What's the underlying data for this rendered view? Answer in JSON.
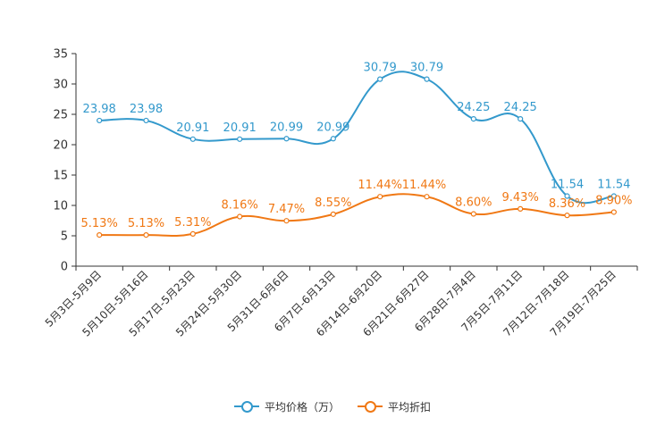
{
  "chart_data": {
    "type": "line",
    "title": "",
    "xlabel": "",
    "ylabel": "",
    "ylim": [
      0,
      35
    ],
    "yticks": [
      0,
      5,
      10,
      15,
      20,
      25,
      30,
      35
    ],
    "grid": false,
    "legend_position": "bottom-center",
    "categories": [
      "5月3日-5月9日",
      "5月10日-5月16日",
      "5月17日-5月23日",
      "5月24日-5月30日",
      "5月31日-6月6日",
      "6月7日-6月13日",
      "6月14日-6月20日",
      "6月21日-6月27日",
      "6月28日-7月4日",
      "7月5日-7月11日",
      "7月12日-7月18日",
      "7月19日-7月25日"
    ],
    "series": [
      {
        "name": "平均价格（万）",
        "color": "#3399cc",
        "values": [
          23.98,
          23.98,
          20.91,
          20.91,
          20.99,
          20.99,
          30.79,
          30.79,
          24.25,
          24.25,
          11.54,
          11.54
        ],
        "labels": [
          "23.98",
          "23.98",
          "20.91",
          "20.91",
          "20.99",
          "20.99",
          "30.79",
          "30.79",
          "24.25",
          "24.25",
          "11.54",
          "11.54"
        ]
      },
      {
        "name": "平均折扣",
        "color": "#f07814",
        "values": [
          5.13,
          5.13,
          5.31,
          8.16,
          7.47,
          8.55,
          11.44,
          11.44,
          8.6,
          9.43,
          8.36,
          8.9
        ],
        "labels": [
          "5.13%",
          "5.13%",
          "5.31%",
          "8.16%",
          "7.47%",
          "8.55%",
          "11.44%",
          "11.44%",
          "8.60%",
          "9.43%",
          "8.36%",
          "8.90%"
        ]
      }
    ]
  }
}
